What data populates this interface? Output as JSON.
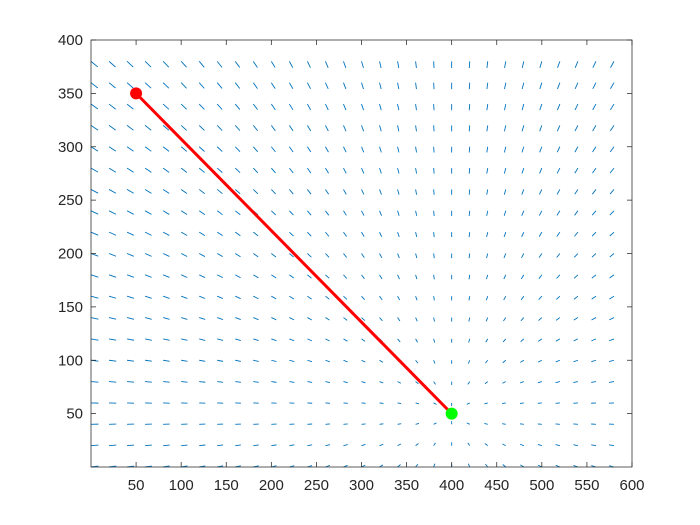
{
  "chart_data": {
    "type": "quiver",
    "title": "",
    "xlabel": "",
    "ylabel": "",
    "xlim": [
      0,
      600
    ],
    "ylim": [
      0,
      400
    ],
    "x_ticks": [
      50,
      100,
      150,
      200,
      250,
      300,
      350,
      400,
      450,
      500,
      550,
      600
    ],
    "y_ticks": [
      50,
      100,
      150,
      200,
      250,
      300,
      350,
      400
    ],
    "grid": false,
    "legend": "none",
    "vector_field": {
      "x_range": [
        0,
        580,
        20
      ],
      "y_range": [
        0,
        380,
        20
      ],
      "attractor": [
        400,
        50
      ],
      "color": "#0072BD"
    },
    "series": [
      {
        "x": [
          50,
          400
        ],
        "y": [
          350,
          50
        ],
        "color": "#FF0000"
      }
    ],
    "markers": [
      {
        "x": 50,
        "y": 350,
        "color": "#FF0000"
      },
      {
        "x": 400,
        "y": 50,
        "color": "#00FF00"
      }
    ]
  }
}
